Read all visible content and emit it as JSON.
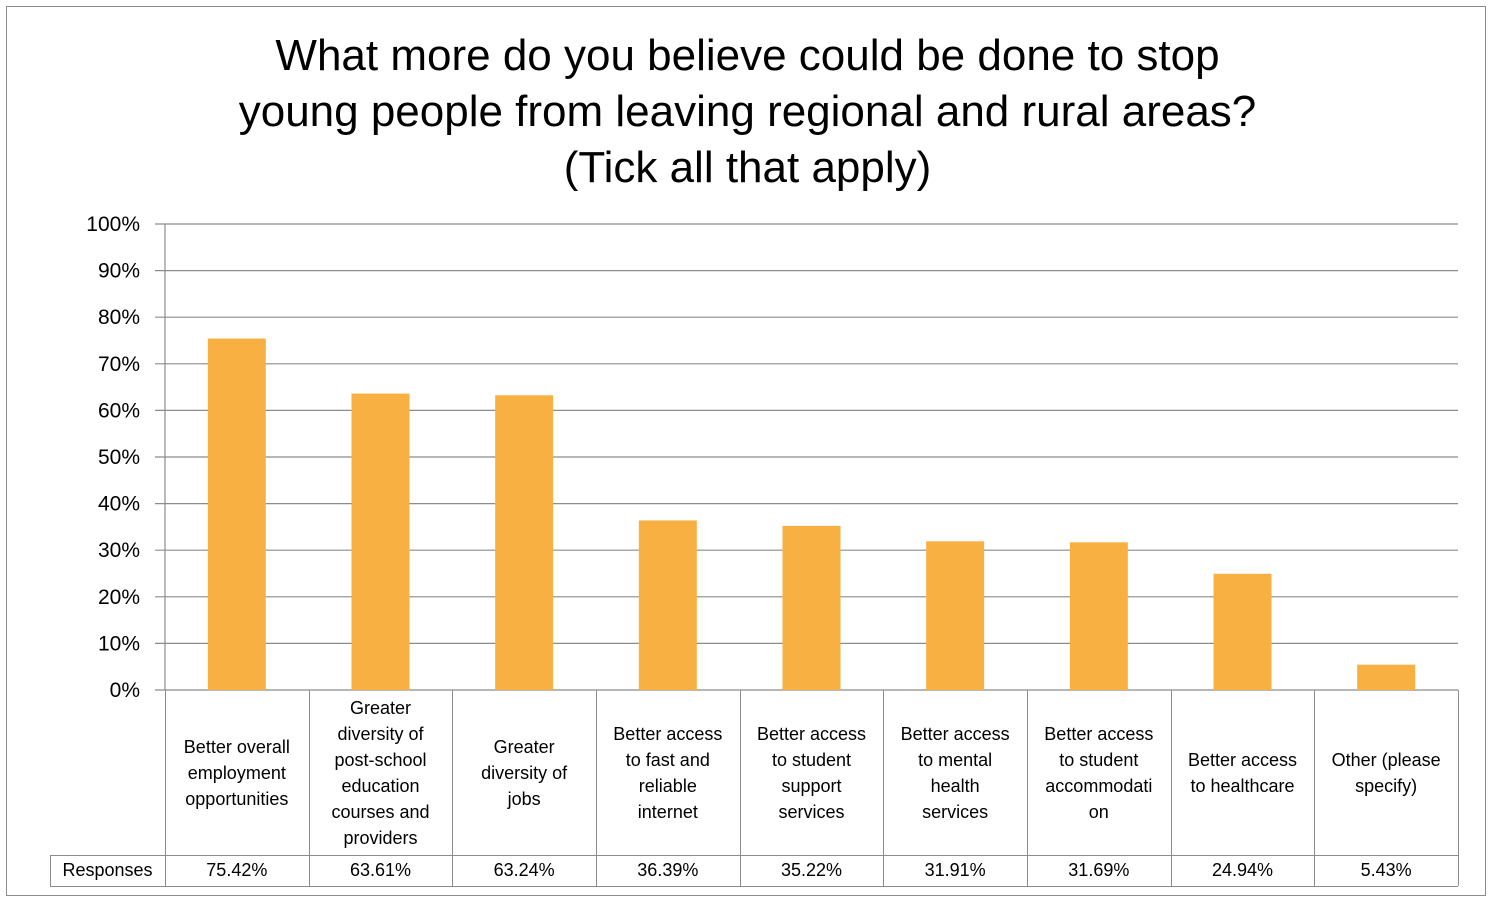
{
  "chart_data": {
    "type": "bar",
    "title": [
      "What more do you believe could be done to stop",
      "young people from leaving regional and rural areas?",
      "(Tick all that apply)"
    ],
    "categories": [
      [
        "Better overall",
        "employment",
        "opportunities"
      ],
      [
        "Greater",
        "diversity of",
        "post-school",
        "education",
        "courses and",
        "providers"
      ],
      [
        "Greater",
        "diversity of",
        "jobs"
      ],
      [
        "Better access",
        "to fast and",
        "reliable",
        "internet"
      ],
      [
        "Better access",
        "to student",
        "support",
        "services"
      ],
      [
        "Better access",
        "to mental",
        "health",
        "services"
      ],
      [
        "Better access",
        "to student",
        "accommodati",
        "on"
      ],
      [
        "Better access",
        "to healthcare"
      ],
      [
        "Other (please",
        "specify)"
      ]
    ],
    "series": [
      {
        "name": "Responses",
        "values": [
          75.42,
          63.61,
          63.24,
          36.39,
          35.22,
          31.91,
          31.69,
          24.94,
          5.43
        ],
        "value_labels": [
          "75.42%",
          "63.61%",
          "63.24%",
          "36.39%",
          "35.22%",
          "31.91%",
          "31.69%",
          "24.94%",
          "5.43%"
        ]
      }
    ],
    "y_ticks": [
      "0%",
      "10%",
      "20%",
      "30%",
      "40%",
      "50%",
      "60%",
      "70%",
      "80%",
      "90%",
      "100%"
    ],
    "ylim": [
      0,
      100
    ],
    "grid": true,
    "bar_color": "#f9b042",
    "grid_color": "#8c8c8c"
  }
}
